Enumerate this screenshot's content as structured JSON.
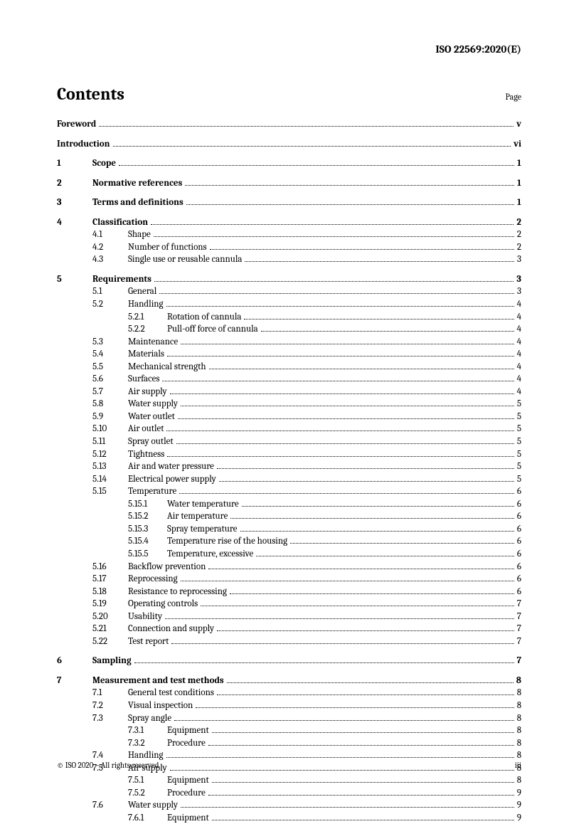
{
  "doc_header": "ISO 22569:2020(E)",
  "contents_title": "Contents",
  "page_label": "Page",
  "footer_left": "© ISO 2020 – All rights reserved",
  "footer_right": "iii",
  "toc": [
    {
      "lvl": 0,
      "num": "",
      "label": "Foreword",
      "page": "v",
      "bold": true,
      "section": true
    },
    {
      "lvl": 0,
      "num": "",
      "label": "Introduction",
      "page": "vi",
      "bold": true,
      "section": true
    },
    {
      "lvl": 1,
      "num": "1",
      "label": "Scope",
      "page": "1",
      "bold": true,
      "section": true
    },
    {
      "lvl": 1,
      "num": "2",
      "label": "Normative references",
      "page": "1",
      "bold": true,
      "section": true
    },
    {
      "lvl": 1,
      "num": "3",
      "label": "Terms and definitions",
      "page": "1",
      "bold": true,
      "section": true
    },
    {
      "lvl": 1,
      "num": "4",
      "label": "Classification",
      "page": "2",
      "bold": true,
      "section": true
    },
    {
      "lvl": 2,
      "num": "4.1",
      "label": "Shape",
      "page": "2"
    },
    {
      "lvl": 2,
      "num": "4.2",
      "label": "Number of functions",
      "page": "2"
    },
    {
      "lvl": 2,
      "num": "4.3",
      "label": "Single use or reusable cannula",
      "page": "3"
    },
    {
      "lvl": 1,
      "num": "5",
      "label": "Requirements",
      "page": "3",
      "bold": true,
      "section": true
    },
    {
      "lvl": 2,
      "num": "5.1",
      "label": "General",
      "page": "3"
    },
    {
      "lvl": 2,
      "num": "5.2",
      "label": "Handling",
      "page": "4"
    },
    {
      "lvl": 3,
      "num": "5.2.1",
      "label": "Rotation of cannula",
      "page": "4"
    },
    {
      "lvl": 3,
      "num": "5.2.2",
      "label": "Pull-off force of cannula",
      "page": "4"
    },
    {
      "lvl": 2,
      "num": "5.3",
      "label": "Maintenance",
      "page": "4"
    },
    {
      "lvl": 2,
      "num": "5.4",
      "label": "Materials",
      "page": "4"
    },
    {
      "lvl": 2,
      "num": "5.5",
      "label": "Mechanical strength",
      "page": "4"
    },
    {
      "lvl": 2,
      "num": "5.6",
      "label": "Surfaces",
      "page": "4"
    },
    {
      "lvl": 2,
      "num": "5.7",
      "label": "Air supply",
      "page": "4"
    },
    {
      "lvl": 2,
      "num": "5.8",
      "label": "Water supply",
      "page": "5"
    },
    {
      "lvl": 2,
      "num": "5.9",
      "label": "Water outlet",
      "page": "5"
    },
    {
      "lvl": 2,
      "num": "5.10",
      "label": "Air outlet",
      "page": "5"
    },
    {
      "lvl": 2,
      "num": "5.11",
      "label": "Spray outlet",
      "page": "5"
    },
    {
      "lvl": 2,
      "num": "5.12",
      "label": "Tightness",
      "page": "5"
    },
    {
      "lvl": 2,
      "num": "5.13",
      "label": "Air and water pressure",
      "page": "5"
    },
    {
      "lvl": 2,
      "num": "5.14",
      "label": "Electrical power supply",
      "page": "5"
    },
    {
      "lvl": 2,
      "num": "5.15",
      "label": "Temperature",
      "page": "6"
    },
    {
      "lvl": 3,
      "num": "5.15.1",
      "label": "Water temperature",
      "page": "6"
    },
    {
      "lvl": 3,
      "num": "5.15.2",
      "label": "Air temperature",
      "page": "6"
    },
    {
      "lvl": 3,
      "num": "5.15.3",
      "label": "Spray temperature",
      "page": "6"
    },
    {
      "lvl": 3,
      "num": "5.15.4",
      "label": "Temperature rise of the housing",
      "page": "6"
    },
    {
      "lvl": 3,
      "num": "5.15.5",
      "label": "Temperature, excessive",
      "page": "6"
    },
    {
      "lvl": 2,
      "num": "5.16",
      "label": "Backflow prevention",
      "page": "6"
    },
    {
      "lvl": 2,
      "num": "5.17",
      "label": "Reprocessing",
      "page": "6"
    },
    {
      "lvl": 2,
      "num": "5.18",
      "label": "Resistance to reprocessing",
      "page": "6"
    },
    {
      "lvl": 2,
      "num": "5.19",
      "label": "Operating controls",
      "page": "7"
    },
    {
      "lvl": 2,
      "num": "5.20",
      "label": "Usability",
      "page": "7"
    },
    {
      "lvl": 2,
      "num": "5.21",
      "label": "Connection and supply",
      "page": "7"
    },
    {
      "lvl": 2,
      "num": "5.22",
      "label": "Test report",
      "page": "7"
    },
    {
      "lvl": 1,
      "num": "6",
      "label": "Sampling",
      "page": "7",
      "bold": true,
      "section": true
    },
    {
      "lvl": 1,
      "num": "7",
      "label": "Measurement and test methods",
      "page": "8",
      "bold": true,
      "section": true
    },
    {
      "lvl": 2,
      "num": "7.1",
      "label": "General test conditions",
      "page": "8"
    },
    {
      "lvl": 2,
      "num": "7.2",
      "label": "Visual inspection",
      "page": "8"
    },
    {
      "lvl": 2,
      "num": "7.3",
      "label": "Spray angle",
      "page": "8"
    },
    {
      "lvl": 3,
      "num": "7.3.1",
      "label": "Equipment",
      "page": "8"
    },
    {
      "lvl": 3,
      "num": "7.3.2",
      "label": "Procedure",
      "page": "8"
    },
    {
      "lvl": 2,
      "num": "7.4",
      "label": "Handling",
      "page": "8"
    },
    {
      "lvl": 2,
      "num": "7.5",
      "label": "Air supply",
      "page": "8"
    },
    {
      "lvl": 3,
      "num": "7.5.1",
      "label": "Equipment",
      "page": "8"
    },
    {
      "lvl": 3,
      "num": "7.5.2",
      "label": "Procedure",
      "page": "9"
    },
    {
      "lvl": 2,
      "num": "7.6",
      "label": "Water supply",
      "page": "9"
    },
    {
      "lvl": 3,
      "num": "7.6.1",
      "label": "Equipment",
      "page": "9"
    }
  ]
}
